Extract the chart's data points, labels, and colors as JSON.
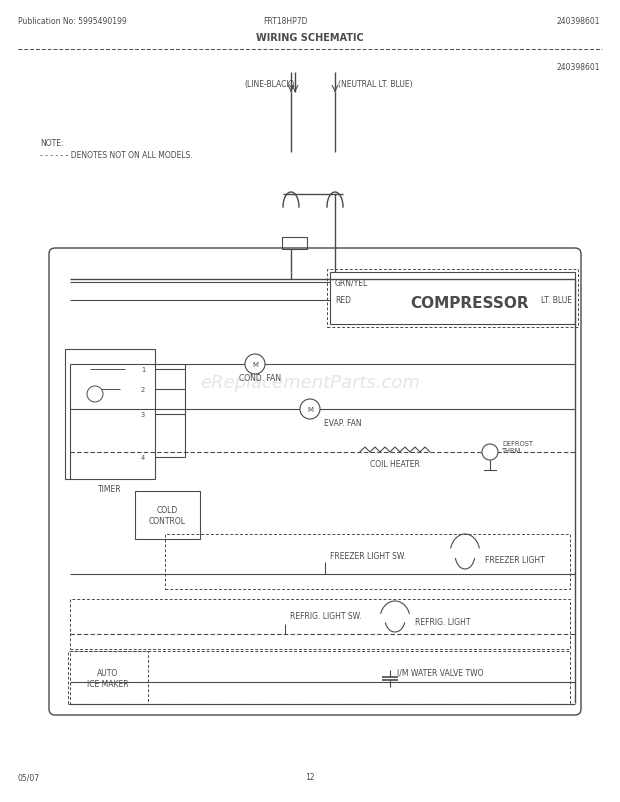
{
  "title": "WIRING SCHEMATIC",
  "pub_no": "Publication No: 5995490199",
  "model": "FRT18HP7D",
  "part_no": "240398601",
  "date": "05/07",
  "page": "12",
  "bg_color": "#ffffff",
  "line_color": "#4a4a4a",
  "note_line1": "NOTE:",
  "note_line2": "- - - - - - DENOTES NOT ON ALL MODELS.",
  "line_black_label": "(LINE-BLACK)",
  "neutral_label": "(NEUTRAL LT. BLUE)",
  "compressor_label": "COMPRESSOR",
  "grn_yel_label": "GRN/YEL",
  "red_label": "RED",
  "lt_blue_label": "LT. BLUE",
  "cond_fan_label": "COND. FAN",
  "evap_fan_label": "EVAP. FAN",
  "coil_heater_label": "COIL HEATER",
  "defrost_label": "DEFROST\nTHRM.",
  "timer_label": "TIMER",
  "cold_control_label": "COLD\nCONTROL",
  "freezer_light_sw_label": "FREEZER LIGHT SW.",
  "freezer_light_label": "FREEZER LIGHT",
  "refrig_light_sw_label": "REFRIG. LIGHT SW.",
  "refrig_light_label": "REFRIG. LIGHT",
  "auto_ice_maker_label": "AUTO\nICE MAKER",
  "water_valve_label": "I/M WATER VALVE TWO"
}
